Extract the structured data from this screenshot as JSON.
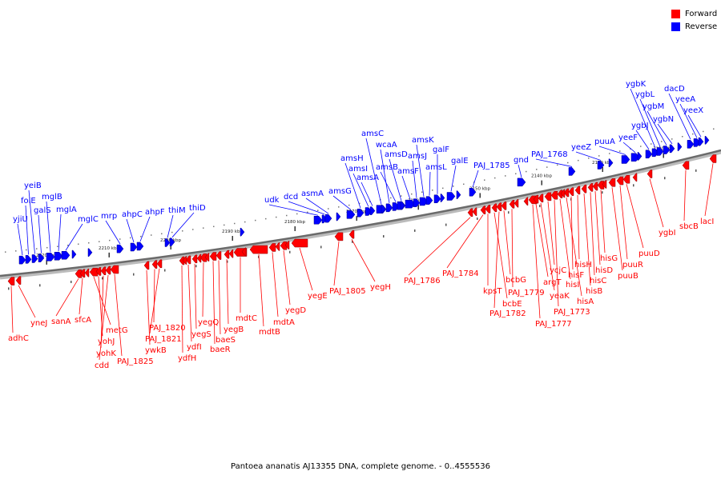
{
  "legend": {
    "forward_label": "Forward",
    "reverse_label": "Reverse",
    "forward_color": "#ff0000",
    "reverse_color": "#0000ff"
  },
  "caption": "Pantoea ananatis AJ13355 DNA, complete genome. - 0..4555536",
  "scale_ticks": [
    "2220 kbp",
    "2210 kbp",
    "2200 kbp",
    "2190 kbp",
    "2180 kbp",
    "2170 kbp",
    "2160 kbp",
    "2150 kbp",
    "2140 kbp",
    "2130 kbp",
    "2120 kbp"
  ],
  "reverse_genes": [
    "yjiU",
    "folE",
    "yeiB",
    "galS",
    "mglB",
    "mglA",
    "mglC",
    "mrp",
    "ahpC",
    "ahpF",
    "thiM",
    "thiD",
    "udk",
    "dcd",
    "asmA",
    "amsG",
    "amsH",
    "amsI",
    "amsA",
    "amsC",
    "wcaA",
    "amsB",
    "amsD",
    "amsF",
    "amsJ",
    "amsK",
    "amsL",
    "galF",
    "galE",
    "PAJ_1785",
    "gnd",
    "PAJ_1768",
    "yeeZ",
    "puuA",
    "yeeF",
    "ygbJ",
    "ygbK",
    "ygbL",
    "ygbM",
    "ygbN",
    "dacD",
    "yeeA",
    "yeeX"
  ],
  "forward_genes": [
    "adhC",
    "yneJ",
    "sanA",
    "sfcA",
    "metG",
    "yohJ",
    "yohK",
    "cdd",
    "PAJ_1825",
    "ywkB",
    "PAJ_1820",
    "PAJ_1821",
    "ydfH",
    "ydfI",
    "yegS",
    "yegQ",
    "baeR",
    "baeS",
    "yegB",
    "mdtC",
    "mdtB",
    "mdtA",
    "yegD",
    "yegE",
    "PAJ_1805",
    "yegH",
    "PAJ_1786",
    "PAJ_1784",
    "kpsT",
    "bcbE",
    "PAJ_1782",
    "bcbG",
    "PAJ_1779",
    "PAJ_1777",
    "argT",
    "yeaK",
    "ycjC",
    "PAJ_1773",
    "hisI",
    "hisA",
    "hisF",
    "hisH",
    "hisB",
    "hisC",
    "hisD",
    "hisG",
    "puuB",
    "puuR",
    "puuD",
    "ygbI",
    "sbcB",
    "lacI"
  ]
}
